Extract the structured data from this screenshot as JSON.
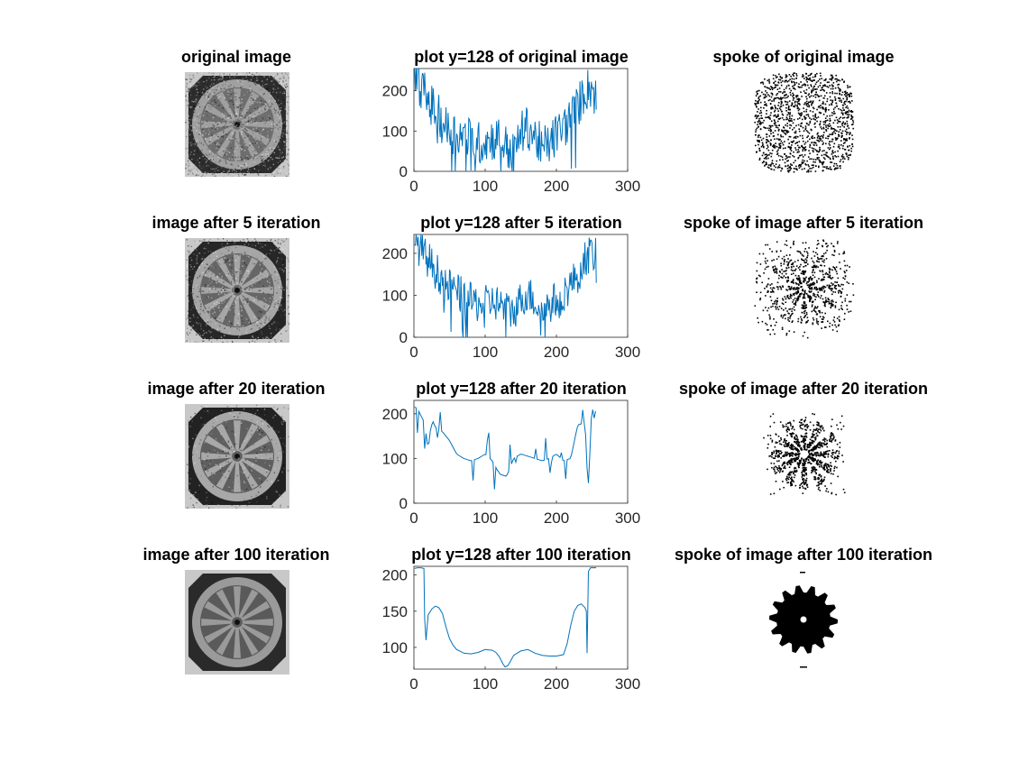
{
  "colors": {
    "line": "#0072bd",
    "axis": "#262626",
    "dark_pixel": "#000000",
    "title": "#000000"
  },
  "panels": [
    {
      "image_title": "original image",
      "plot_title": "plot y=128 of original image",
      "spoke_title": "spoke of original image",
      "image_gray_levels": {
        "background": "#6e6e6e",
        "wheel": "#a0a0a0",
        "corners": "#2c2c2c",
        "noise": "heavy"
      },
      "spoke_density": 0.42,
      "spoke_style": "noisy"
    },
    {
      "image_title": "image after 5 iteration",
      "plot_title": "plot y=128 after 5 iteration",
      "spoke_title": "spoke of image after 5 iteration",
      "image_gray_levels": {
        "background": "#666666",
        "wheel": "#a6a6a6",
        "corners": "#262626",
        "noise": "medium"
      },
      "spoke_density": 0.26,
      "spoke_style": "noisy-spokes"
    },
    {
      "image_title": "image after 20 iteration",
      "plot_title": "plot y=128 after 20 iteration",
      "spoke_title": "spoke of image after 20 iteration",
      "image_gray_levels": {
        "background": "#5f5f5f",
        "wheel": "#a8a8a8",
        "corners": "#222222",
        "noise": "light"
      },
      "spoke_density": 0.12,
      "spoke_style": "spokes"
    },
    {
      "image_title": "image after 100 iteration",
      "plot_title": "plot y=128 after 100 iteration",
      "spoke_title": "spoke of image after 100 iteration",
      "image_gray_levels": {
        "background": "#5a5a5a",
        "wheel": "#9a9a9a",
        "corners": "#2a2a2a",
        "noise": "none"
      },
      "spoke_density": 0.0,
      "spoke_style": "solid"
    }
  ],
  "chart_data": [
    {
      "type": "line",
      "title": "plot y=128 of original image",
      "xlim": [
        0,
        300
      ],
      "ylim": [
        0,
        255
      ],
      "xticks": [
        0,
        100,
        200,
        300
      ],
      "yticks": [
        0,
        100,
        200
      ],
      "grid": false,
      "x_range": [
        1,
        256
      ],
      "series": [
        {
          "x": [
            1,
            10,
            20,
            30,
            40,
            50,
            60,
            70,
            80,
            90,
            100,
            110,
            120,
            130,
            140,
            150,
            160,
            170,
            180,
            190,
            200,
            210,
            220,
            230,
            240,
            250,
            256
          ],
          "y": [
            240,
            210,
            175,
            150,
            120,
            100,
            95,
            85,
            80,
            70,
            75,
            80,
            85,
            60,
            40,
            95,
            110,
            85,
            60,
            70,
            90,
            110,
            130,
            160,
            200,
            210,
            175
          ]
        }
      ]
    },
    {
      "type": "line",
      "title": "plot y=128 after 5 iteration",
      "xlim": [
        0,
        300
      ],
      "ylim": [
        0,
        245
      ],
      "xticks": [
        0,
        100,
        200,
        300
      ],
      "yticks": [
        0,
        100,
        200
      ],
      "grid": false,
      "x_range": [
        1,
        256
      ],
      "series": [
        {
          "x": [
            1,
            10,
            20,
            30,
            40,
            50,
            60,
            70,
            80,
            90,
            100,
            110,
            120,
            130,
            140,
            150,
            160,
            170,
            180,
            190,
            200,
            210,
            220,
            230,
            240,
            250,
            256
          ],
          "y": [
            235,
            205,
            185,
            160,
            140,
            120,
            110,
            95,
            85,
            80,
            80,
            85,
            80,
            65,
            60,
            90,
            105,
            85,
            65,
            75,
            90,
            105,
            125,
            150,
            190,
            200,
            190
          ]
        }
      ]
    },
    {
      "type": "line",
      "title": "plot y=128 after 20 iteration",
      "xlim": [
        0,
        300
      ],
      "ylim": [
        0,
        230
      ],
      "xticks": [
        0,
        100,
        200,
        300
      ],
      "yticks": [
        0,
        100,
        200
      ],
      "grid": false,
      "x_range": [
        1,
        256
      ],
      "series": [
        {
          "x": [
            1,
            5,
            10,
            15,
            20,
            25,
            30,
            40,
            50,
            60,
            70,
            80,
            90,
            100,
            110,
            120,
            130,
            140,
            150,
            160,
            170,
            180,
            190,
            200,
            210,
            220,
            230,
            240,
            245,
            250,
            256
          ],
          "y": [
            215,
            212,
            195,
            180,
            120,
            190,
            170,
            160,
            140,
            110,
            100,
            95,
            100,
            110,
            95,
            65,
            60,
            100,
            110,
            105,
            100,
            95,
            100,
            110,
            95,
            100,
            175,
            180,
            45,
            210,
            205
          ]
        }
      ]
    },
    {
      "type": "line",
      "title": "plot y=128 after 100 iteration",
      "xlim": [
        0,
        300
      ],
      "ylim": [
        70,
        212
      ],
      "xticks": [
        0,
        100,
        200,
        300
      ],
      "yticks": [
        100,
        150,
        200
      ],
      "grid": false,
      "series": [
        {
          "x": [
            1,
            5,
            10,
            14,
            15,
            17,
            20,
            25,
            30,
            35,
            40,
            45,
            50,
            55,
            60,
            70,
            80,
            90,
            100,
            110,
            115,
            120,
            125,
            128,
            132,
            135,
            140,
            150,
            160,
            170,
            180,
            190,
            200,
            210,
            215,
            220,
            225,
            230,
            235,
            240,
            242,
            243,
            245,
            248,
            250,
            256
          ],
          "y": [
            209,
            210,
            210,
            209,
            140,
            110,
            145,
            153,
            157,
            155,
            147,
            128,
            112,
            103,
            97,
            92,
            91,
            93,
            97,
            96,
            93,
            87,
            77,
            73,
            75,
            80,
            89,
            95,
            97,
            92,
            89,
            88,
            88,
            90,
            105,
            130,
            150,
            158,
            160,
            155,
            150,
            92,
            205,
            210,
            210,
            210
          ]
        }
      ]
    }
  ]
}
